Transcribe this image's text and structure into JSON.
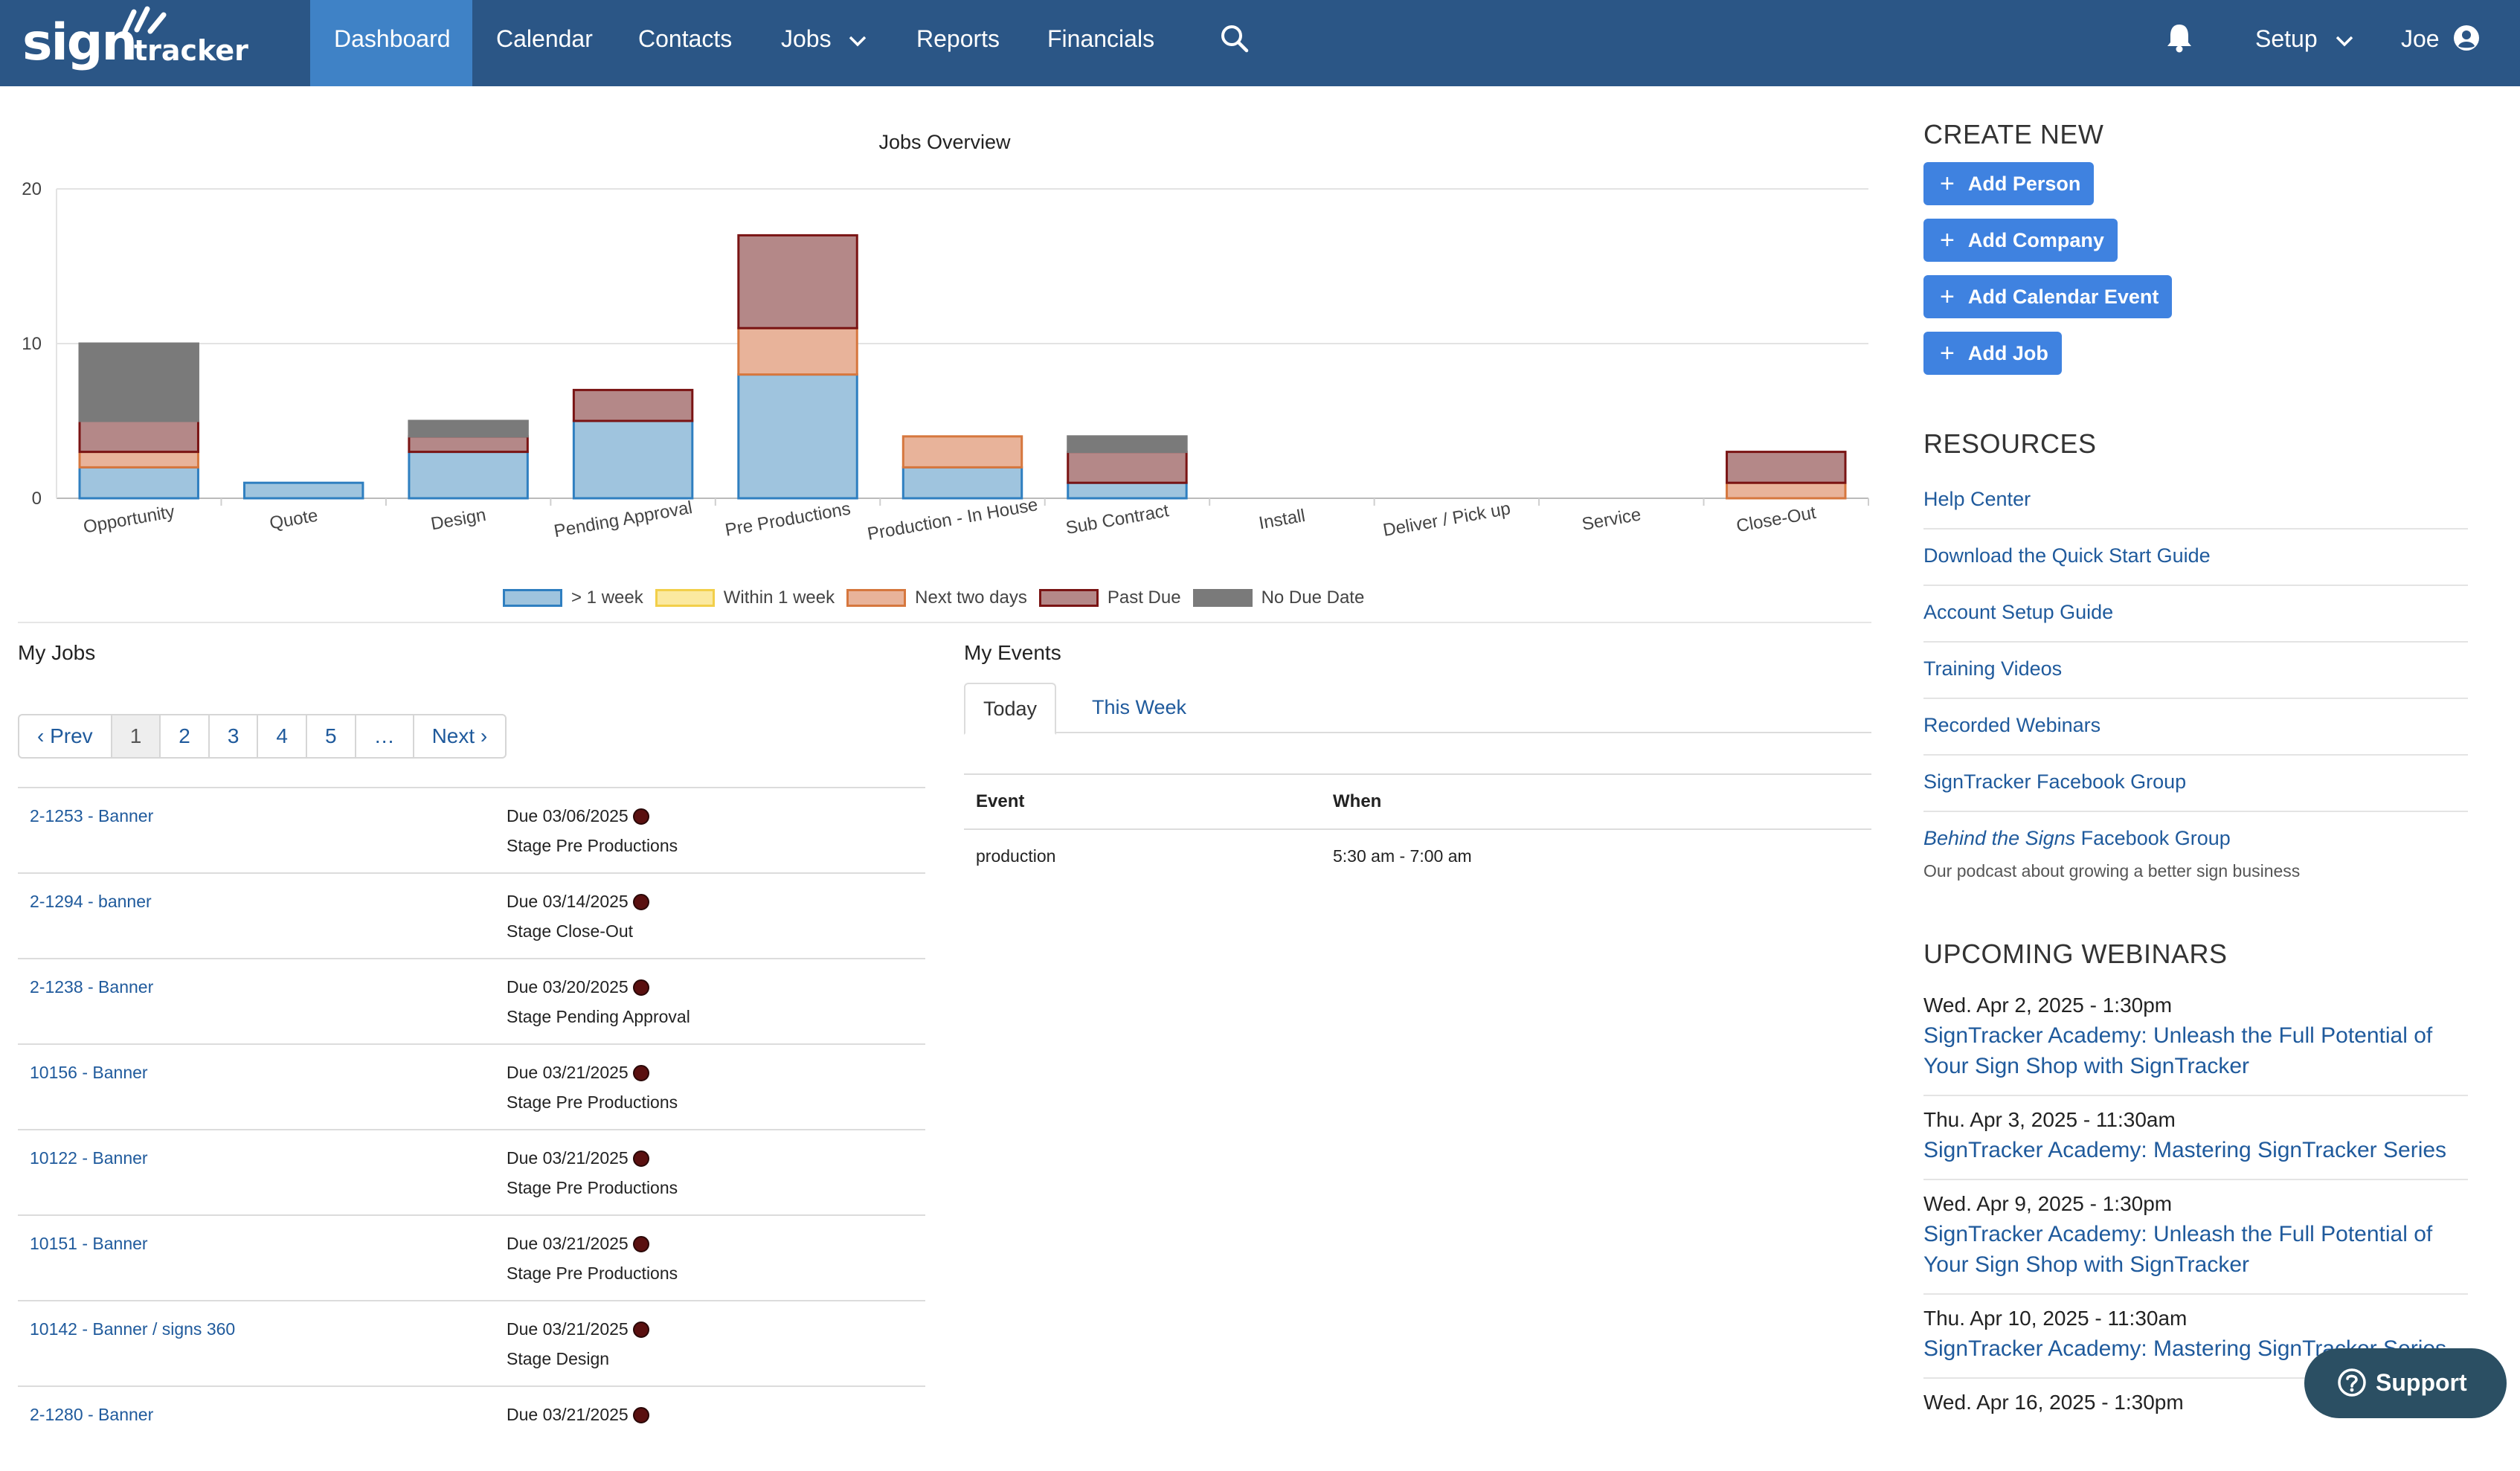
{
  "brand": {
    "logo_sign": "sign",
    "logo_tracker": "tracker"
  },
  "nav": {
    "items": [
      {
        "label": "Dashboard",
        "active": true
      },
      {
        "label": "Calendar"
      },
      {
        "label": "Contacts"
      },
      {
        "label": "Jobs",
        "dropdown": true
      },
      {
        "label": "Reports"
      },
      {
        "label": "Financials"
      }
    ],
    "search_icon": "search-icon",
    "bell_icon": "bell-icon",
    "setup_label": "Setup",
    "user_label": "Joe",
    "user_icon": "user-circle-icon",
    "bar_color": "#2b5686",
    "active_color": "#3f82c6"
  },
  "chart_data": {
    "type": "bar",
    "stacked": true,
    "title": "Jobs Overview",
    "categories": [
      "Opportunity",
      "Quote",
      "Design",
      "Pending Approval",
      "Pre Productions",
      "Production - In House",
      "Sub Contract",
      "Install",
      "Deliver / Pick up",
      "Service",
      "Close-Out"
    ],
    "series": [
      {
        "name": "> 1 week",
        "values": [
          2,
          1,
          3,
          5,
          8,
          2,
          1,
          0,
          0,
          0,
          0
        ],
        "fill": "#9fc4de",
        "stroke": "#2f7fc0"
      },
      {
        "name": "Within 1 week",
        "values": [
          0,
          0,
          0,
          0,
          0,
          0,
          0,
          0,
          0,
          0,
          0
        ],
        "fill": "#fbe9a0",
        "stroke": "#f2cf4a"
      },
      {
        "name": "Next two days",
        "values": [
          1,
          0,
          0,
          0,
          3,
          2,
          0,
          0,
          0,
          0,
          1
        ],
        "fill": "#e8b39a",
        "stroke": "#d6773e"
      },
      {
        "name": "Past Due",
        "values": [
          2,
          0,
          1,
          2,
          6,
          0,
          2,
          0,
          0,
          0,
          2
        ],
        "fill": "#b48888",
        "stroke": "#7a1414"
      },
      {
        "name": "No Due Date",
        "values": [
          5,
          0,
          1,
          0,
          0,
          0,
          1,
          0,
          0,
          0,
          0
        ],
        "fill": "#7a7a7a",
        "stroke": "#7a7a7a"
      }
    ],
    "ylim": [
      0,
      20
    ],
    "yticks": [
      0,
      10,
      20
    ],
    "grid": true,
    "legend": "bottom"
  },
  "jobs": {
    "title": "My Jobs",
    "pager": [
      "‹ Prev",
      "1",
      "2",
      "3",
      "4",
      "5",
      "…",
      "Next ›"
    ],
    "current_page": "1",
    "rows": [
      {
        "name": "2-1253 - Banner",
        "due": "Due 03/06/2025",
        "stage": "Stage Pre Productions"
      },
      {
        "name": "2-1294 - banner",
        "due": "Due 03/14/2025",
        "stage": "Stage Close-Out"
      },
      {
        "name": "2-1238 - Banner",
        "due": "Due 03/20/2025",
        "stage": "Stage Pending Approval"
      },
      {
        "name": "10156 - Banner",
        "due": "Due 03/21/2025",
        "stage": "Stage Pre Productions"
      },
      {
        "name": "10122 - Banner",
        "due": "Due 03/21/2025",
        "stage": "Stage Pre Productions"
      },
      {
        "name": "10151 - Banner",
        "due": "Due 03/21/2025",
        "stage": "Stage Pre Productions"
      },
      {
        "name": "10142 - Banner / signs 360",
        "due": "Due 03/21/2025",
        "stage": "Stage Design"
      },
      {
        "name": "2-1280 - Banner",
        "due": "Due 03/21/2025",
        "stage": ""
      }
    ]
  },
  "events": {
    "title": "My Events",
    "tabs": [
      "Today",
      "This Week"
    ],
    "active_tab": "Today",
    "columns": [
      "Event",
      "When"
    ],
    "rows": [
      {
        "event": "production",
        "when": "5:30 am - 7:00 am"
      }
    ]
  },
  "sidebar": {
    "create_title": "CREATE NEW",
    "buttons": [
      "Add Person",
      "Add Company",
      "Add Calendar Event",
      "Add Job"
    ],
    "button_color": "#3f82e0",
    "resources_title": "RESOURCES",
    "resources": [
      "Help Center",
      "Download the Quick Start Guide",
      "Account Setup Guide",
      "Training Videos",
      "Recorded Webinars",
      "SignTracker Facebook Group"
    ],
    "podcast_italic": "Behind the Signs",
    "podcast_rest": " Facebook Group",
    "podcast_sub": "Our podcast about growing a better sign business",
    "webinars_title": "UPCOMING WEBINARS",
    "webinars": [
      {
        "date": "Wed. Apr 2, 2025 - 1:30pm",
        "title": "SignTracker Academy: Unleash the Full Potential of Your Sign Shop with SignTracker"
      },
      {
        "date": "Thu. Apr 3, 2025 - 11:30am",
        "title": "SignTracker Academy: Mastering SignTracker Series"
      },
      {
        "date": "Wed. Apr 9, 2025 - 1:30pm",
        "title": "SignTracker Academy: Unleash the Full Potential of Your Sign Shop with SignTracker"
      },
      {
        "date": "Thu. Apr 10, 2025 - 11:30am",
        "title": "SignTracker Academy: Mastering SignTracker Series"
      },
      {
        "date": "Wed. Apr 16, 2025 - 1:30pm",
        "title": ""
      }
    ]
  },
  "support": {
    "label": "Support",
    "icon": "question-circle-icon"
  }
}
